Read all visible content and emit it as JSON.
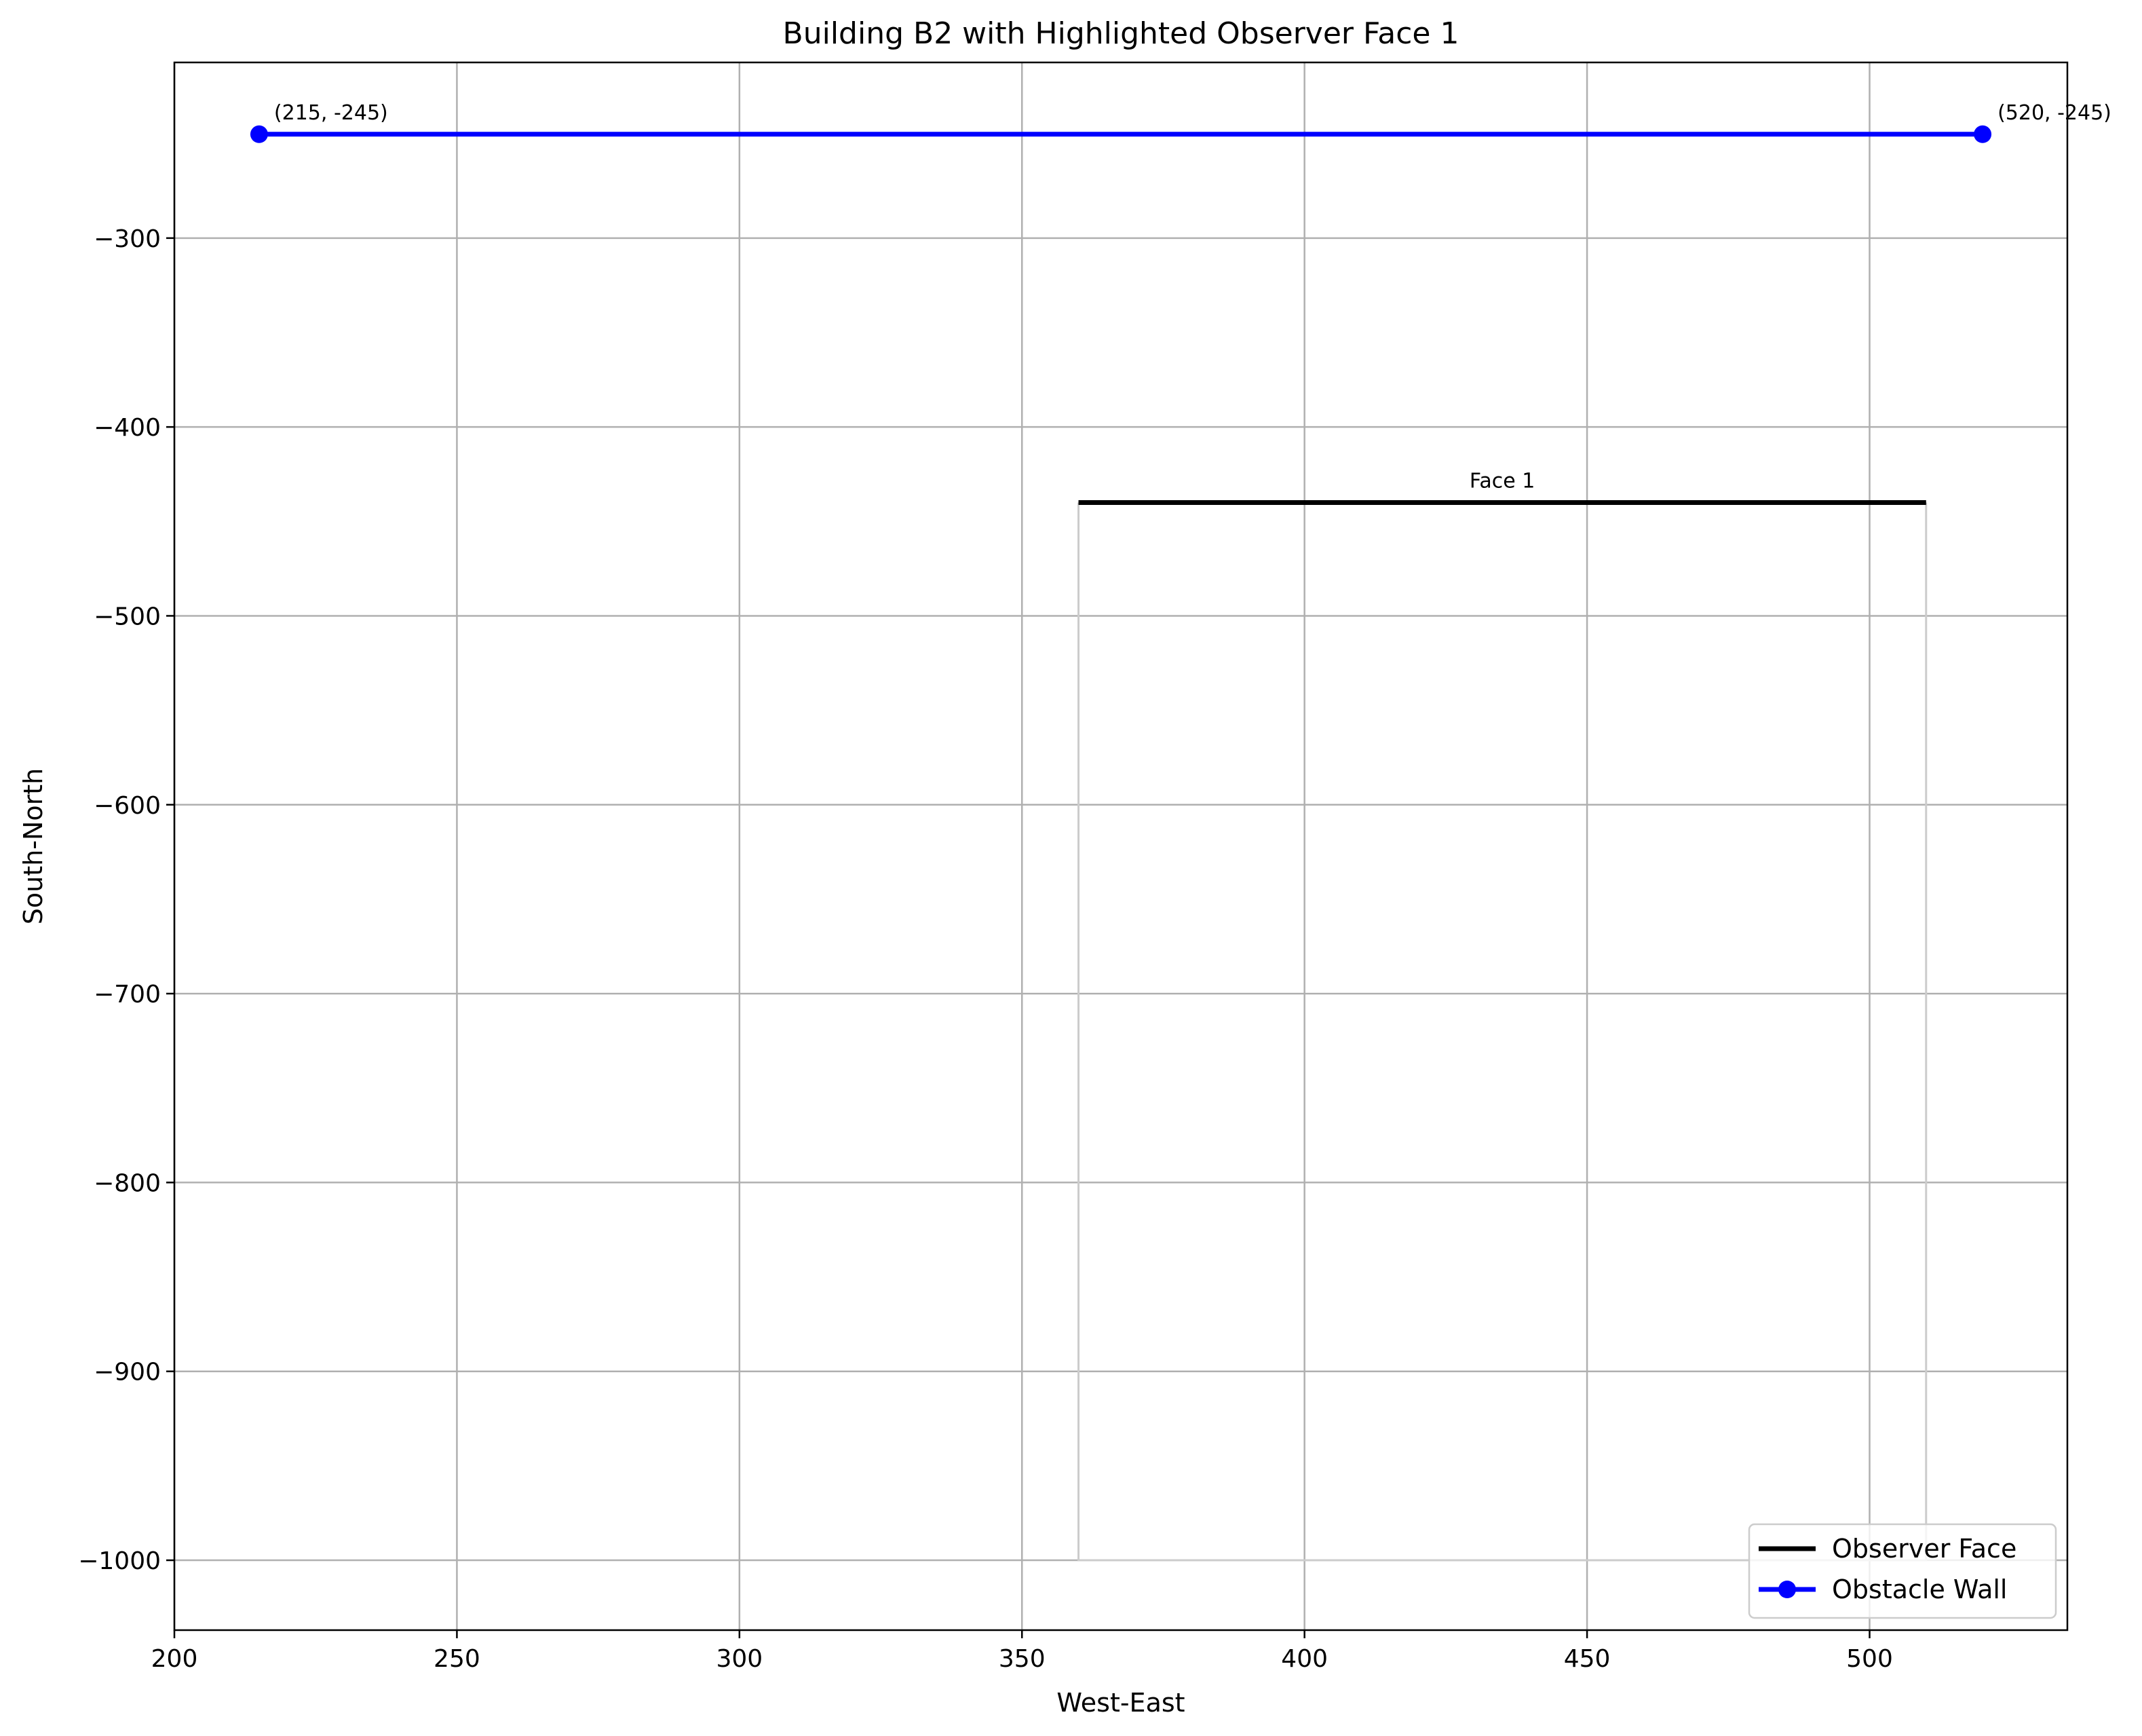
{
  "chart_data": {
    "type": "line",
    "title": "Building B2 with Highlighted Observer Face 1",
    "xlabel": "West-East",
    "ylabel": "South-North",
    "xlim": [
      200,
      535
    ],
    "ylim": [
      -1037,
      -207
    ],
    "x_ticks": [
      200,
      250,
      300,
      350,
      400,
      450,
      500
    ],
    "y_ticks": [
      -300,
      -400,
      -500,
      -600,
      -700,
      -800,
      -900,
      -1000
    ],
    "x_tick_labels": [
      "200",
      "250",
      "300",
      "350",
      "400",
      "450",
      "500"
    ],
    "y_tick_labels": [
      "−300",
      "−400",
      "−500",
      "−600",
      "−700",
      "−800",
      "−900",
      "−1000"
    ],
    "grid": true,
    "legend_position": "lower-right",
    "building_outline": {
      "color": "#cccccc",
      "points": [
        [
          360,
          -440
        ],
        [
          360,
          -1000
        ],
        [
          510,
          -1000
        ],
        [
          510,
          -440
        ]
      ]
    },
    "series": [
      {
        "name": "Observer Face",
        "color": "#000000",
        "marker": "none",
        "x": [
          360,
          510
        ],
        "y": [
          -440,
          -440
        ]
      },
      {
        "name": "Obstacle Wall",
        "color": "#0000ff",
        "marker": "circle",
        "x": [
          215,
          520
        ],
        "y": [
          -245,
          -245
        ]
      }
    ],
    "annotations": [
      {
        "text": "(215, -245)",
        "x": 215,
        "y": -245,
        "anchor": "start"
      },
      {
        "text": "(520, -245)",
        "x": 520,
        "y": -245,
        "anchor": "start"
      },
      {
        "text": "Face 1",
        "x": 435,
        "y": -440,
        "anchor": "middle"
      }
    ]
  }
}
